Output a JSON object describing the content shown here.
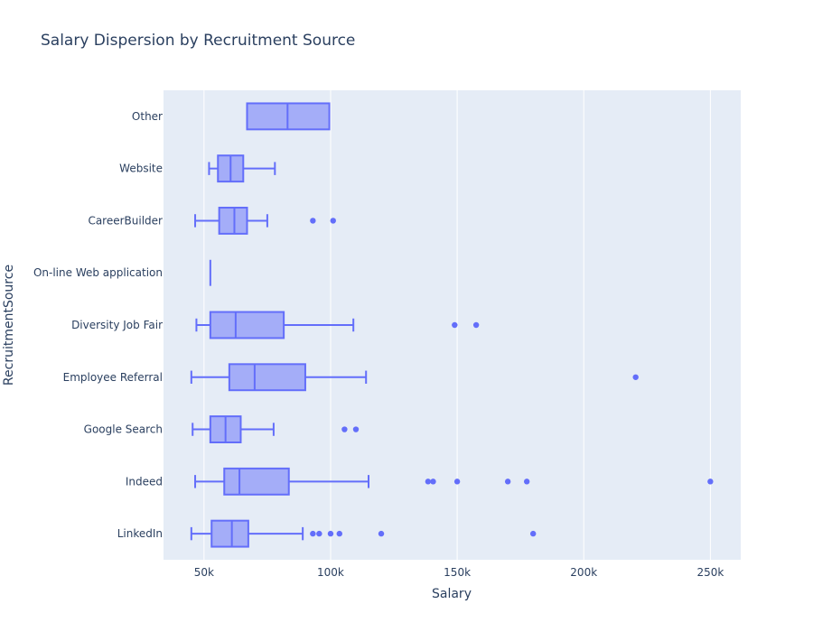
{
  "chart_data": {
    "type": "box",
    "orientation": "horizontal",
    "title": "Salary Dispersion by Recruitment Source",
    "xlabel": "Salary",
    "ylabel": "RecruitmentSource",
    "xlim": [
      34000,
      262000
    ],
    "x_ticks": [
      {
        "value": 50000,
        "label": "50k"
      },
      {
        "value": 100000,
        "label": "100k"
      },
      {
        "value": 150000,
        "label": "150k"
      },
      {
        "value": 200000,
        "label": "200k"
      },
      {
        "value": 250000,
        "label": "250k"
      }
    ],
    "grid": true,
    "colors": {
      "line": "#636efa",
      "fill": "rgba(99,110,250,0.5)",
      "plot_bg": "#e5ecf6",
      "grid": "#ffffff",
      "text": "#2a3f5f"
    },
    "categories": [
      "Other",
      "Website",
      "CareerBuilder",
      "On-line Web application",
      "Diversity Job Fair",
      "Employee Referral",
      "Google Search",
      "Indeed",
      "LinkedIn"
    ],
    "boxes": [
      {
        "category": "Other",
        "min": 67000,
        "q1": 67000,
        "median": 83000,
        "q3": 99500,
        "max": 99500,
        "outliers": []
      },
      {
        "category": "Website",
        "min": 52000,
        "q1": 55500,
        "median": 60500,
        "q3": 65500,
        "max": 78000,
        "outliers": []
      },
      {
        "category": "CareerBuilder",
        "min": 46500,
        "q1": 56000,
        "median": 62000,
        "q3": 67000,
        "max": 75000,
        "outliers": [
          93000,
          101000
        ]
      },
      {
        "category": "On-line Web application",
        "min": 52500,
        "q1": 52500,
        "median": 52500,
        "q3": 52500,
        "max": 52500,
        "outliers": []
      },
      {
        "category": "Diversity Job Fair",
        "min": 47000,
        "q1": 52500,
        "median": 62500,
        "q3": 81500,
        "max": 109000,
        "outliers": [
          149000,
          157500
        ]
      },
      {
        "category": "Employee Referral",
        "min": 45000,
        "q1": 60000,
        "median": 70000,
        "q3": 90000,
        "max": 114000,
        "outliers": [
          220500
        ]
      },
      {
        "category": "Google Search",
        "min": 45500,
        "q1": 52500,
        "median": 58500,
        "q3": 64500,
        "max": 77500,
        "outliers": [
          105500,
          110000
        ]
      },
      {
        "category": "Indeed",
        "min": 46500,
        "q1": 58000,
        "median": 64000,
        "q3": 83500,
        "max": 115000,
        "outliers": [
          138500,
          140500,
          150000,
          170000,
          177500,
          250000
        ]
      },
      {
        "category": "LinkedIn",
        "min": 45000,
        "q1": 53000,
        "median": 61000,
        "q3": 67500,
        "max": 89000,
        "outliers": [
          93000,
          95500,
          100000,
          103500,
          120000,
          180000
        ]
      }
    ]
  }
}
